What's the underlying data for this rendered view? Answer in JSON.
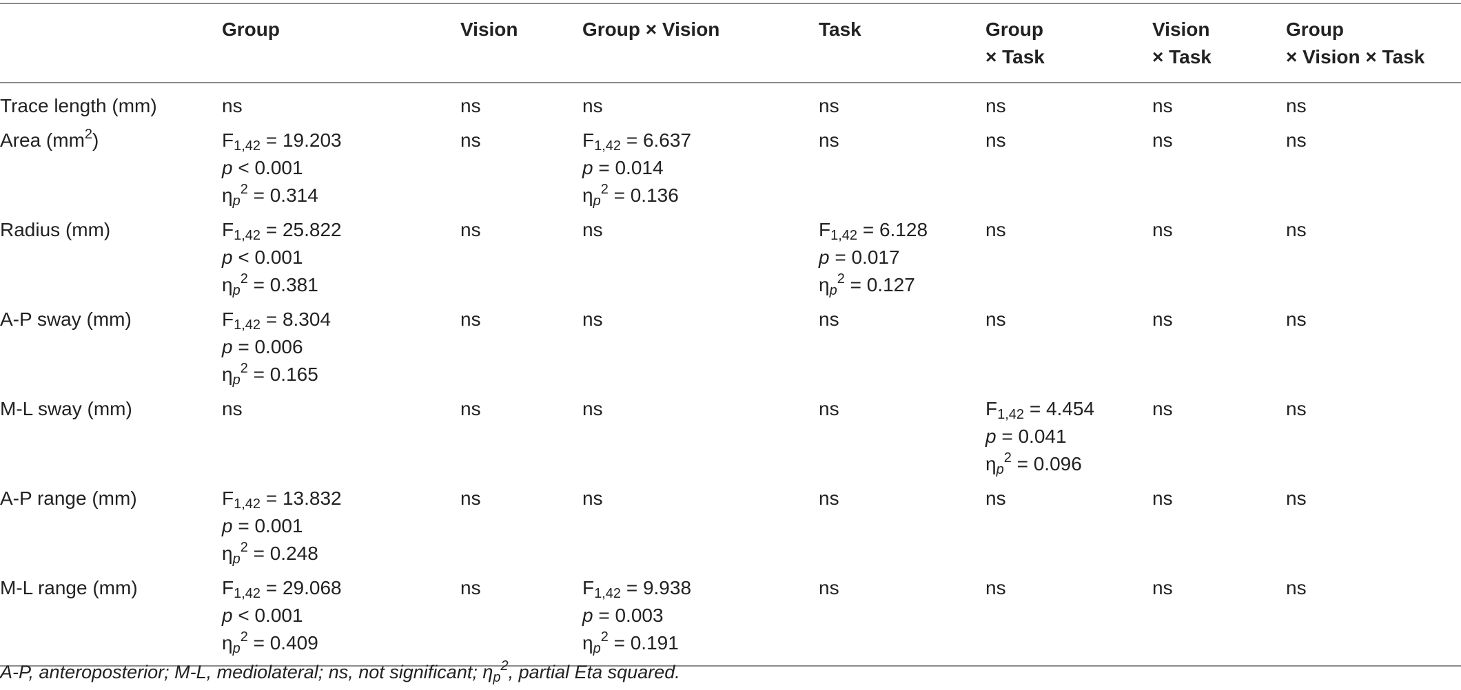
{
  "header": {
    "row_label": "",
    "group": "Group",
    "vision": "Vision",
    "group_x_vision": "Group × Vision",
    "task": "Task",
    "group_x_task_1": "Group",
    "group_x_task_2": "× Task",
    "vision_x_task_1": "Vision",
    "vision_x_task_2": "× Task",
    "gvt_1": "Group",
    "gvt_2": "× Vision × Task"
  },
  "stat": {
    "F": "F",
    "F_sub": "1,42",
    "p": "p",
    "eta": "η",
    "eta_sub": "p",
    "sq": "2",
    "ns": "ns"
  },
  "rows": {
    "trace": {
      "label": "Trace length (mm)"
    },
    "area": {
      "label_base": "Area (mm",
      "label_sup": "2",
      "label_end": ")",
      "group": {
        "f": " = 19.203",
        "p": " < 0.001",
        "eta": " = 0.314"
      },
      "gxv": {
        "f": " = 6.637",
        "p": " = 0.014",
        "eta": " = 0.136"
      }
    },
    "radius": {
      "label": "Radius (mm)",
      "group": {
        "f": " = 25.822",
        "p": " < 0.001",
        "eta": " = 0.381"
      },
      "task": {
        "f": " = 6.128",
        "p": " = 0.017",
        "eta": " = 0.127"
      }
    },
    "ap_sway": {
      "label": "A-P sway (mm)",
      "group": {
        "f": " = 8.304",
        "p": " = 0.006",
        "eta": " = 0.165"
      }
    },
    "ml_sway": {
      "label": "M-L sway (mm)",
      "gxt": {
        "f": " = 4.454",
        "p": " = 0.041",
        "eta": " = 0.096"
      }
    },
    "ap_range": {
      "label": "A-P range (mm)",
      "group": {
        "f": " = 13.832",
        "p": " = 0.001",
        "eta": " = 0.248"
      }
    },
    "ml_range": {
      "label": "M-L range (mm)",
      "group": {
        "f": " = 29.068",
        "p": " < 0.001",
        "eta": " = 0.409"
      },
      "gxv": {
        "f": " = 9.938",
        "p": " = 0.003",
        "eta": " = 0.191"
      }
    }
  },
  "footnote": {
    "text_1": "A-P, anteroposterior; M-L, mediolateral; ns, not significant; η",
    "sub": "p",
    "sup": "2",
    "text_2": ", partial Eta squared."
  }
}
